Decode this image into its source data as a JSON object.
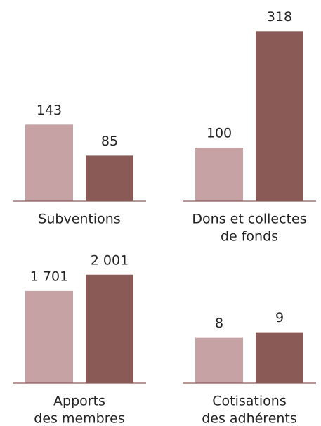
{
  "chart_data": [
    {
      "type": "bar",
      "title": [
        "Subventions"
      ],
      "values": [
        143,
        85
      ],
      "colors": [
        "#c6a2a5",
        "#8a5a57"
      ],
      "ylim": [
        0,
        350
      ]
    },
    {
      "type": "bar",
      "title": [
        "Dons et collectes",
        "de fonds"
      ],
      "values": [
        100,
        318
      ],
      "colors": [
        "#c6a2a5",
        "#8a5a57"
      ],
      "ylim": [
        0,
        350
      ]
    },
    {
      "type": "bar",
      "title": [
        "Apports",
        "des membres"
      ],
      "values": [
        1701,
        2001
      ],
      "value_labels": [
        "1 701",
        "2 001"
      ],
      "colors": [
        "#c6a2a5",
        "#8a5a57"
      ],
      "ylim": [
        0,
        2400
      ]
    },
    {
      "type": "bar",
      "title": [
        "Cotisations",
        "des adhérents"
      ],
      "values": [
        8,
        9
      ],
      "colors": [
        "#c6a2a5",
        "#8a5a57"
      ],
      "ylim": [
        0,
        23
      ]
    }
  ]
}
